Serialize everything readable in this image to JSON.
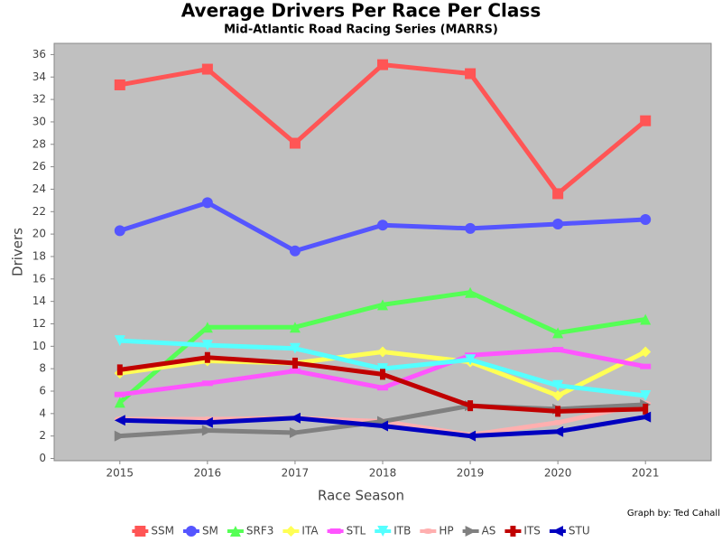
{
  "chart_data": {
    "type": "line",
    "title": "Average Drivers Per Race Per Class",
    "subtitle": "Mid-Atlantic Road Racing Series (MARRS)",
    "x_label": "Race Season",
    "y_label": "Drivers",
    "credit": "Graph by: Ted Cahall",
    "x": [
      2015,
      2016,
      2017,
      2018,
      2019,
      2020,
      2021
    ],
    "xlim": [
      2014.25,
      2021.75
    ],
    "xticks": [
      2015,
      2016,
      2017,
      2018,
      2019,
      2020,
      2021
    ],
    "ylim": [
      -0.2,
      37
    ],
    "yticks": [
      0,
      2,
      4,
      6,
      8,
      10,
      12,
      14,
      16,
      18,
      20,
      22,
      24,
      26,
      28,
      30,
      32,
      34,
      36
    ],
    "grid": false,
    "legend": "bottom",
    "plot_background": "#c0c0c0",
    "series": [
      {
        "name": "SSM",
        "color": "#ff5555",
        "marker": "square",
        "values": [
          33.3,
          34.7,
          28.1,
          35.1,
          34.3,
          23.6,
          30.1
        ]
      },
      {
        "name": "SM",
        "color": "#5555ff",
        "marker": "circle",
        "values": [
          20.3,
          22.8,
          18.5,
          20.8,
          20.5,
          20.9,
          21.3
        ]
      },
      {
        "name": "SRF3",
        "color": "#55ff55",
        "marker": "triangle-up",
        "values": [
          5.0,
          11.7,
          11.7,
          13.7,
          14.8,
          11.2,
          12.4
        ]
      },
      {
        "name": "ITA",
        "color": "#ffff55",
        "marker": "diamond",
        "values": [
          7.6,
          8.7,
          8.5,
          9.5,
          8.6,
          5.6,
          9.5
        ]
      },
      {
        "name": "STL",
        "color": "#ff55ff",
        "marker": "rect-h",
        "values": [
          5.7,
          6.7,
          7.8,
          6.3,
          9.2,
          9.7,
          8.2
        ]
      },
      {
        "name": "ITB",
        "color": "#55ffff",
        "marker": "triangle-down",
        "values": [
          10.5,
          10.1,
          9.8,
          8.0,
          8.8,
          6.5,
          5.6
        ]
      },
      {
        "name": "HP",
        "color": "#ffafaf",
        "marker": "ellipse",
        "values": [
          3.5,
          3.5,
          3.6,
          3.3,
          2.1,
          3.2,
          4.9
        ]
      },
      {
        "name": "AS",
        "color": "#808080",
        "marker": "triangle-right",
        "values": [
          2.0,
          2.5,
          2.3,
          3.3,
          4.7,
          4.4,
          4.8
        ]
      },
      {
        "name": "ITS",
        "color": "#c00000",
        "marker": "rect-v",
        "values": [
          7.9,
          9.0,
          8.5,
          7.5,
          4.7,
          4.2,
          4.4
        ]
      },
      {
        "name": "STU",
        "color": "#0000c0",
        "marker": "triangle-left",
        "values": [
          3.4,
          3.2,
          3.6,
          2.9,
          2.0,
          2.4,
          3.7
        ]
      }
    ]
  }
}
